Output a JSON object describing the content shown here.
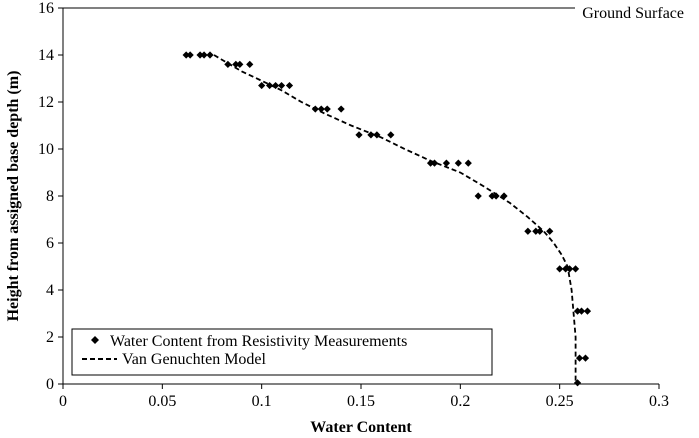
{
  "chart_data": {
    "type": "scatter",
    "title": "",
    "xlabel": "Water Content",
    "ylabel": "Height from assigned base depth (m)",
    "xlim": [
      0,
      0.3
    ],
    "ylim": [
      0,
      16
    ],
    "xticks": [
      0,
      0.05,
      0.1,
      0.15,
      0.2,
      0.25,
      0.3
    ],
    "yticks": [
      0,
      2,
      4,
      6,
      8,
      10,
      12,
      14,
      16
    ],
    "xtick_labels": [
      "0",
      "0.05",
      "0.1",
      "0.15",
      "0.2",
      "0.25",
      "0.3"
    ],
    "ytick_labels": [
      "0",
      "2",
      "4",
      "6",
      "8",
      "10",
      "12",
      "14",
      "16"
    ],
    "grid": false,
    "annotation": {
      "text": "Ground Surface",
      "y": 16
    },
    "legend": {
      "position": "bottom-left",
      "entries": [
        "Water Content from Resistivity Measurements",
        "Van Genuchten Model"
      ]
    },
    "series": [
      {
        "name": "Water Content from Resistivity Measurements",
        "kind": "scatter",
        "marker": "diamond",
        "color": "#000000",
        "points": [
          [
            0.062,
            14.0
          ],
          [
            0.064,
            14.0
          ],
          [
            0.069,
            14.0
          ],
          [
            0.071,
            14.0
          ],
          [
            0.074,
            14.0
          ],
          [
            0.083,
            13.6
          ],
          [
            0.087,
            13.6
          ],
          [
            0.089,
            13.6
          ],
          [
            0.094,
            13.6
          ],
          [
            0.1,
            12.7
          ],
          [
            0.104,
            12.7
          ],
          [
            0.107,
            12.7
          ],
          [
            0.11,
            12.7
          ],
          [
            0.114,
            12.7
          ],
          [
            0.127,
            11.7
          ],
          [
            0.13,
            11.7
          ],
          [
            0.133,
            11.7
          ],
          [
            0.14,
            11.7
          ],
          [
            0.149,
            10.6
          ],
          [
            0.155,
            10.6
          ],
          [
            0.158,
            10.6
          ],
          [
            0.165,
            10.6
          ],
          [
            0.185,
            9.4
          ],
          [
            0.187,
            9.4
          ],
          [
            0.193,
            9.4
          ],
          [
            0.199,
            9.4
          ],
          [
            0.204,
            9.4
          ],
          [
            0.209,
            8.0
          ],
          [
            0.216,
            8.0
          ],
          [
            0.218,
            8.0
          ],
          [
            0.222,
            8.0
          ],
          [
            0.234,
            6.5
          ],
          [
            0.238,
            6.5
          ],
          [
            0.24,
            6.5
          ],
          [
            0.245,
            6.5
          ],
          [
            0.25,
            4.9
          ],
          [
            0.253,
            4.9
          ],
          [
            0.255,
            4.9
          ],
          [
            0.258,
            4.9
          ],
          [
            0.259,
            3.1
          ],
          [
            0.261,
            3.1
          ],
          [
            0.264,
            3.1
          ],
          [
            0.26,
            1.1
          ],
          [
            0.263,
            1.1
          ],
          [
            0.259,
            0.05
          ]
        ]
      },
      {
        "name": "Van Genuchten Model",
        "kind": "line",
        "dash": "dashed",
        "color": "#000000",
        "points": [
          [
            0.076,
            14.0
          ],
          [
            0.082,
            13.7
          ],
          [
            0.09,
            13.3
          ],
          [
            0.1,
            12.9
          ],
          [
            0.11,
            12.5
          ],
          [
            0.12,
            12.0
          ],
          [
            0.132,
            11.5
          ],
          [
            0.145,
            11.0
          ],
          [
            0.16,
            10.5
          ],
          [
            0.172,
            10.0
          ],
          [
            0.185,
            9.5
          ],
          [
            0.2,
            9.0
          ],
          [
            0.212,
            8.4
          ],
          [
            0.225,
            7.7
          ],
          [
            0.234,
            7.1
          ],
          [
            0.242,
            6.5
          ],
          [
            0.247,
            6.0
          ],
          [
            0.251,
            5.5
          ],
          [
            0.254,
            5.0
          ],
          [
            0.256,
            4.0
          ],
          [
            0.257,
            3.0
          ],
          [
            0.258,
            2.0
          ],
          [
            0.258,
            1.0
          ],
          [
            0.258,
            0.0
          ]
        ]
      }
    ]
  }
}
